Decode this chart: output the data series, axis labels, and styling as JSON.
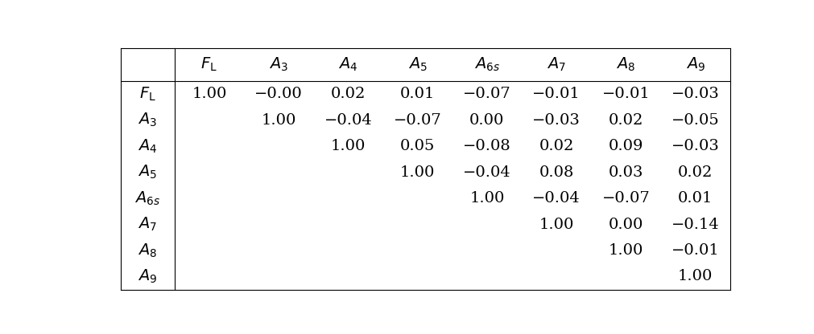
{
  "col_headers": [
    "$F_{\\mathrm{L}}$",
    "$A_3$",
    "$A_4$",
    "$A_5$",
    "$A_{6s}$",
    "$A_7$",
    "$A_8$",
    "$A_9$"
  ],
  "row_headers": [
    "$F_{\\mathrm{L}}$",
    "$A_3$",
    "$A_4$",
    "$A_5$",
    "$A_{6s}$",
    "$A_7$",
    "$A_8$",
    "$A_9$"
  ],
  "data": [
    [
      "1.00",
      "−0.00",
      "0.02",
      "0.01",
      "−0.07",
      "−0.01",
      "−0.01",
      "−0.03"
    ],
    [
      "",
      "1.00",
      "−0.04",
      "−0.07",
      "0.00",
      "−0.03",
      "0.02",
      "−0.05"
    ],
    [
      "",
      "",
      "1.00",
      "0.05",
      "−0.08",
      "0.02",
      "0.09",
      "−0.03"
    ],
    [
      "",
      "",
      "",
      "1.00",
      "−0.04",
      "0.08",
      "0.03",
      "0.02"
    ],
    [
      "",
      "",
      "",
      "",
      "1.00",
      "−0.04",
      "−0.07",
      "0.01"
    ],
    [
      "",
      "",
      "",
      "",
      "",
      "1.00",
      "0.00",
      "−0.14"
    ],
    [
      "",
      "",
      "",
      "",
      "",
      "",
      "1.00",
      "−0.01"
    ],
    [
      "",
      "",
      "",
      "",
      "",
      "",
      "",
      "1.00"
    ]
  ],
  "figsize": [
    10.12,
    4.16
  ],
  "dpi": 100,
  "background_color": "#ffffff",
  "line_color": "#000000",
  "text_color": "#000000",
  "fontsize": 14,
  "header_fontsize": 14
}
